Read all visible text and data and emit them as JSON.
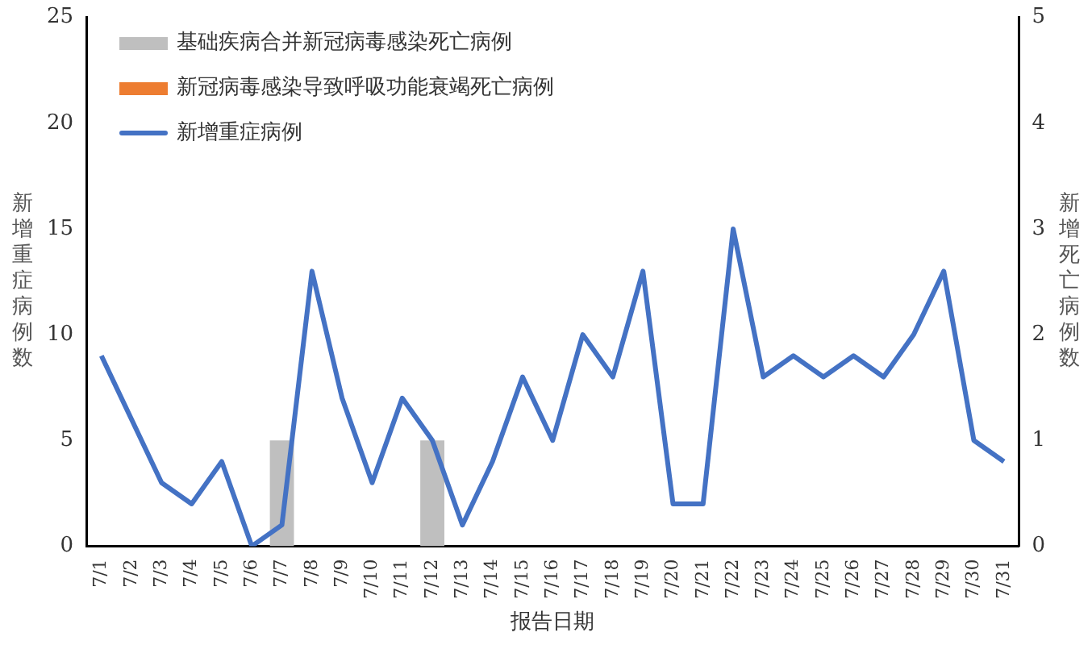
{
  "chart_data": {
    "type": "bar",
    "xlabel": "报告日期",
    "ylabel": "新增重症病例数",
    "y2label": "新增死亡病例数",
    "categories": [
      "7/1",
      "7/2",
      "7/3",
      "7/4",
      "7/5",
      "7/6",
      "7/7",
      "7/8",
      "7/9",
      "7/10",
      "7/11",
      "7/12",
      "7/13",
      "7/14",
      "7/15",
      "7/16",
      "7/17",
      "7/18",
      "7/19",
      "7/20",
      "7/21",
      "7/22",
      "7/23",
      "7/24",
      "7/25",
      "7/26",
      "7/27",
      "7/28",
      "7/29",
      "7/30",
      "7/31"
    ],
    "series": [
      {
        "name": "基础疾病合并新冠病毒感染死亡病例",
        "color": "#bfbfbf",
        "axis": "y2",
        "values": [
          null,
          null,
          null,
          null,
          null,
          null,
          1,
          null,
          null,
          null,
          null,
          1,
          null,
          null,
          null,
          null,
          null,
          null,
          null,
          null,
          null,
          null,
          null,
          null,
          null,
          null,
          null,
          null,
          null,
          null,
          null
        ]
      },
      {
        "name": "新冠病毒感染导致呼吸功能衰竭死亡病例",
        "color": "#ed7d31",
        "axis": "y2",
        "values": [
          null,
          null,
          null,
          null,
          null,
          null,
          null,
          null,
          null,
          null,
          null,
          null,
          null,
          null,
          null,
          null,
          null,
          null,
          null,
          null,
          null,
          null,
          null,
          null,
          null,
          null,
          null,
          null,
          null,
          null,
          null
        ]
      },
      {
        "name": "新增重症病例",
        "color": "#4472c4",
        "type": "line",
        "values": [
          9,
          6,
          3,
          2,
          4,
          0,
          1,
          13,
          7,
          3,
          7,
          5,
          1,
          4,
          8,
          5,
          10,
          8,
          13,
          2,
          2,
          15,
          8,
          9,
          8,
          9,
          8,
          10,
          13,
          5,
          4
        ]
      }
    ],
    "ylim": [
      0,
      25
    ],
    "yticks": [
      0,
      5,
      10,
      15,
      20,
      25
    ],
    "y2lim": [
      0,
      5
    ],
    "y2ticks": [
      0,
      1,
      2,
      3,
      4,
      5
    ],
    "grid": false,
    "legend": "top left",
    "marker": "none",
    "line_style": "solid"
  }
}
